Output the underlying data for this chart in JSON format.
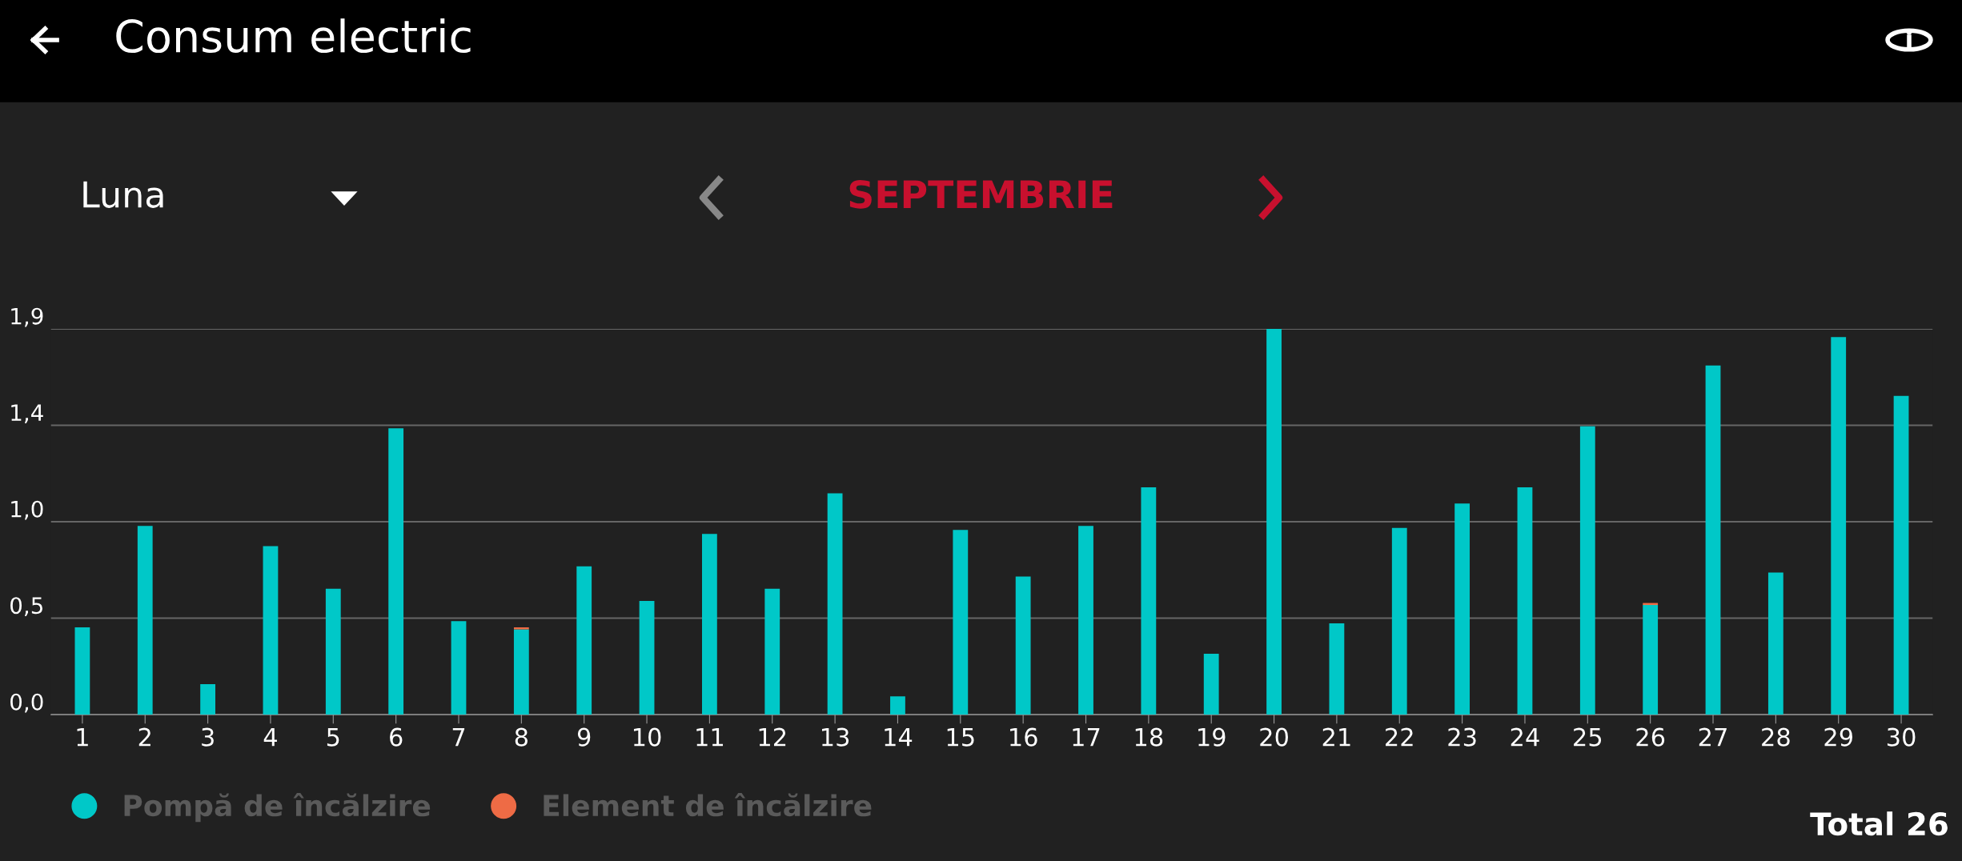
{
  "chart_data": {
    "type": "bar",
    "title": "Consum electric",
    "subtitle": "SEPTEMBRIE",
    "annotations": [
      "Luna",
      "Total 26"
    ],
    "categories": [
      "1",
      "2",
      "3",
      "4",
      "5",
      "6",
      "7",
      "8",
      "9",
      "10",
      "11",
      "12",
      "13",
      "14",
      "15",
      "16",
      "17",
      "18",
      "19",
      "20",
      "21",
      "22",
      "23",
      "24",
      "25",
      "26",
      "27",
      "28",
      "29",
      "30"
    ],
    "series": [
      {
        "name": "Pompă de încălzire",
        "color": "#00c8c8",
        "values": [
          0.43,
          0.93,
          0.15,
          0.83,
          0.62,
          1.41,
          0.46,
          0.42,
          0.73,
          0.56,
          0.89,
          0.62,
          1.09,
          0.09,
          0.91,
          0.68,
          0.93,
          1.12,
          0.3,
          1.9,
          0.45,
          0.92,
          1.04,
          1.12,
          1.42,
          0.54,
          1.72,
          0.7,
          1.86,
          1.57
        ]
      },
      {
        "name": "Element de încălzire",
        "color": "#ee6b45",
        "values": [
          0,
          0,
          0,
          0,
          0,
          0,
          0,
          0.01,
          0,
          0,
          0,
          0,
          0,
          0,
          0,
          0,
          0,
          0,
          0,
          0,
          0,
          0,
          0,
          0,
          0,
          0.01,
          0,
          0,
          0,
          0
        ]
      }
    ],
    "stacked": true,
    "ylim": [
      0,
      1.9
    ],
    "yticks": [
      {
        "value": 0,
        "label": "0,0"
      },
      {
        "value": 0.475,
        "label": "0,5"
      },
      {
        "value": 0.95,
        "label": "1,0"
      },
      {
        "value": 1.425,
        "label": "1,4"
      },
      {
        "value": 1.9,
        "label": "1,9"
      }
    ],
    "grid": "y",
    "legend": "bottom left"
  }
}
